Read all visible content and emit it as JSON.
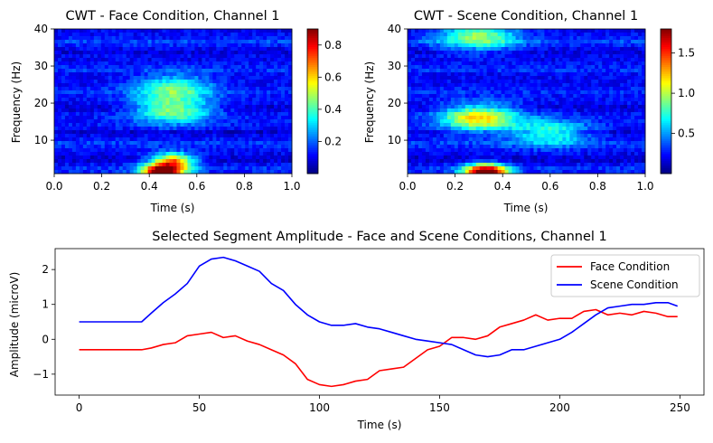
{
  "chart_data": [
    {
      "type": "heatmap",
      "title": "CWT - Face Condition, Channel 1",
      "xlabel": "Time (s)",
      "ylabel": "Frequency (Hz)",
      "xlim": [
        0,
        1
      ],
      "ylim": [
        1,
        40
      ],
      "xticks": [
        "0.0",
        "0.2",
        "0.4",
        "0.6",
        "0.8",
        "1.0"
      ],
      "xtick_values": [
        0,
        0.2,
        0.4,
        0.6,
        0.8,
        1.0
      ],
      "yticks": [
        "10",
        "20",
        "30",
        "40"
      ],
      "ytick_values": [
        10,
        20,
        30,
        40
      ],
      "colormap": "jet",
      "colorbar": {
        "min": 0.0,
        "max": 0.9,
        "ticks": [
          "0.2",
          "0.4",
          "0.6",
          "0.8"
        ],
        "tick_values": [
          0.2,
          0.4,
          0.6,
          0.8
        ]
      },
      "peaks": [
        {
          "time": 0.46,
          "freq": 1.5,
          "value": 0.88
        },
        {
          "time": 0.5,
          "freq": 4.5,
          "value": 0.55
        },
        {
          "time": 0.5,
          "freq": 18.0,
          "value": 0.35
        },
        {
          "time": 0.5,
          "freq": 24.0,
          "value": 0.3
        }
      ]
    },
    {
      "type": "heatmap",
      "title": "CWT - Scene Condition, Channel 1",
      "xlabel": "Time (s)",
      "ylabel": "Frequency (Hz)",
      "xlim": [
        0,
        1
      ],
      "ylim": [
        1,
        40
      ],
      "xticks": [
        "0.0",
        "0.2",
        "0.4",
        "0.6",
        "0.8",
        "1.0"
      ],
      "xtick_values": [
        0,
        0.2,
        0.4,
        0.6,
        0.8,
        1.0
      ],
      "yticks": [
        "10",
        "20",
        "30",
        "40"
      ],
      "ytick_values": [
        10,
        20,
        30,
        40
      ],
      "colormap": "jet",
      "colorbar": {
        "min": 0.0,
        "max": 1.8,
        "ticks": [
          "0.5",
          "1.0",
          "1.5"
        ],
        "tick_values": [
          0.5,
          1.0,
          1.5
        ]
      },
      "peaks": [
        {
          "time": 0.33,
          "freq": 1.5,
          "value": 1.75
        },
        {
          "time": 0.3,
          "freq": 16.0,
          "value": 0.95
        },
        {
          "time": 0.3,
          "freq": 38.0,
          "value": 0.7
        },
        {
          "time": 0.6,
          "freq": 12.0,
          "value": 0.55
        }
      ]
    },
    {
      "type": "line",
      "title": "Selected Segment Amplitude - Face and Scene Conditions, Channel 1",
      "xlabel": "Time (s)",
      "ylabel": "Amplitude (microV)",
      "xlim": [
        -10,
        260
      ],
      "ylim": [
        -1.6,
        2.6
      ],
      "xticks": [
        "0",
        "50",
        "100",
        "150",
        "200",
        "250"
      ],
      "xtick_values": [
        0,
        50,
        100,
        150,
        200,
        250
      ],
      "yticks": [
        "−1",
        "0",
        "1",
        "2"
      ],
      "ytick_values": [
        -1,
        0,
        1,
        2
      ],
      "legend_position": "top-right",
      "series": [
        {
          "name": "Face Condition",
          "color": "#ff0000",
          "x": [
            0,
            10,
            20,
            26,
            30,
            35,
            40,
            45,
            50,
            55,
            60,
            65,
            70,
            75,
            80,
            85,
            90,
            95,
            100,
            105,
            110,
            115,
            120,
            125,
            130,
            135,
            140,
            145,
            150,
            155,
            160,
            165,
            170,
            175,
            180,
            185,
            190,
            195,
            200,
            205,
            210,
            215,
            220,
            225,
            230,
            235,
            240,
            245,
            249
          ],
          "values": [
            -0.3,
            -0.3,
            -0.3,
            -0.3,
            -0.25,
            -0.15,
            -0.1,
            0.1,
            0.15,
            0.2,
            0.05,
            0.1,
            -0.05,
            -0.15,
            -0.3,
            -0.45,
            -0.7,
            -1.15,
            -1.3,
            -1.35,
            -1.3,
            -1.2,
            -1.15,
            -0.9,
            -0.85,
            -0.8,
            -0.55,
            -0.3,
            -0.2,
            0.05,
            0.05,
            0.0,
            0.1,
            0.35,
            0.45,
            0.55,
            0.7,
            0.55,
            0.6,
            0.6,
            0.8,
            0.85,
            0.7,
            0.75,
            0.7,
            0.8,
            0.75,
            0.65,
            0.65
          ]
        },
        {
          "name": "Scene Condition",
          "color": "#0000ff",
          "x": [
            0,
            10,
            20,
            26,
            30,
            35,
            40,
            45,
            50,
            55,
            60,
            65,
            70,
            75,
            80,
            85,
            90,
            95,
            100,
            105,
            110,
            115,
            120,
            125,
            130,
            135,
            140,
            145,
            150,
            155,
            160,
            165,
            170,
            175,
            180,
            185,
            190,
            195,
            200,
            205,
            210,
            215,
            220,
            225,
            230,
            235,
            240,
            245,
            249
          ],
          "values": [
            0.5,
            0.5,
            0.5,
            0.5,
            0.75,
            1.05,
            1.3,
            1.6,
            2.1,
            2.3,
            2.35,
            2.25,
            2.1,
            1.95,
            1.6,
            1.4,
            1.0,
            0.7,
            0.5,
            0.4,
            0.4,
            0.45,
            0.35,
            0.3,
            0.2,
            0.1,
            0.0,
            -0.05,
            -0.1,
            -0.15,
            -0.3,
            -0.45,
            -0.5,
            -0.45,
            -0.3,
            -0.3,
            -0.2,
            -0.1,
            0.0,
            0.2,
            0.45,
            0.7,
            0.9,
            0.95,
            1.0,
            1.0,
            1.05,
            1.05,
            0.95
          ]
        }
      ]
    }
  ]
}
